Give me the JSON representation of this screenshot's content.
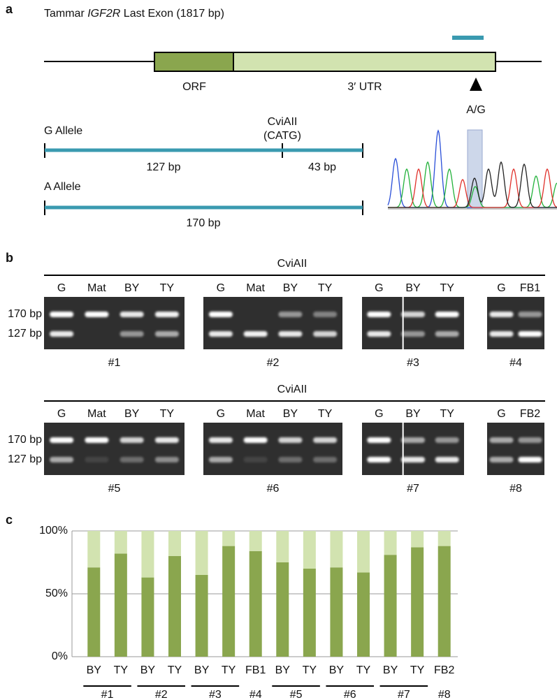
{
  "panel_a": {
    "label": "a",
    "title": {
      "prefix": "Tammar ",
      "gene": "IGF2R",
      "suffix": " Last Exon (1817 bp)"
    },
    "orf": "ORF",
    "utr": "3′ UTR",
    "snp": "A/G",
    "g_allele": {
      "name": "G Allele",
      "enzyme": "CviAII",
      "site": "(CATG)",
      "fragments": [
        "127 bp",
        "43 bp"
      ]
    },
    "a_allele": {
      "name": "A Allele",
      "fragment": "170 bp"
    }
  },
  "panel_b": {
    "label": "b",
    "rows": [
      {
        "enzyme": "CviAII",
        "size_labels": [
          "170 bp",
          "127 bp"
        ],
        "gels": [
          {
            "lanes": [
              "G",
              "Mat",
              "BY",
              "TY"
            ],
            "label": "#1"
          },
          {
            "lanes": [
              "G",
              "Mat",
              "BY",
              "TY"
            ],
            "label": "#2"
          },
          {
            "lanes": [
              "G",
              "BY",
              "TY"
            ],
            "label": "#3"
          },
          {
            "lanes": [
              "G",
              "FB1"
            ],
            "label": "#4"
          }
        ]
      },
      {
        "enzyme": "CviAII",
        "size_labels": [
          "170 bp",
          "127 bp"
        ],
        "gels": [
          {
            "lanes": [
              "G",
              "Mat",
              "BY",
              "TY"
            ],
            "label": "#5"
          },
          {
            "lanes": [
              "G",
              "Mat",
              "BY",
              "TY"
            ],
            "label": "#6"
          },
          {
            "lanes": [
              "G",
              "BY",
              "TY"
            ],
            "label": "#7"
          },
          {
            "lanes": [
              "G",
              "FB2"
            ],
            "label": "#8"
          }
        ]
      }
    ]
  },
  "chart_data": {
    "type": "bar",
    "stacked": true,
    "label": "c",
    "categories": [
      "BY",
      "TY",
      "BY",
      "TY",
      "BY",
      "TY",
      "FB1",
      "BY",
      "TY",
      "BY",
      "TY",
      "BY",
      "TY",
      "FB2"
    ],
    "groups": [
      "#1",
      "#2",
      "#3",
      "#4",
      "#5",
      "#6",
      "#7",
      "#8"
    ],
    "series": [
      {
        "color": "#8aa64e",
        "values": [
          71,
          82,
          63,
          80,
          65,
          88,
          84,
          75,
          70,
          71,
          67,
          81,
          87,
          88
        ]
      },
      {
        "color": "#d2e3b0",
        "values": [
          29,
          18,
          37,
          20,
          35,
          12,
          16,
          25,
          30,
          29,
          33,
          19,
          13,
          12
        ]
      }
    ],
    "ylim": [
      0,
      100
    ],
    "yticks": [
      {
        "value": 0,
        "label": "0%"
      },
      {
        "value": 50,
        "label": "50%"
      },
      {
        "value": 100,
        "label": "100%"
      }
    ],
    "grid": true
  }
}
